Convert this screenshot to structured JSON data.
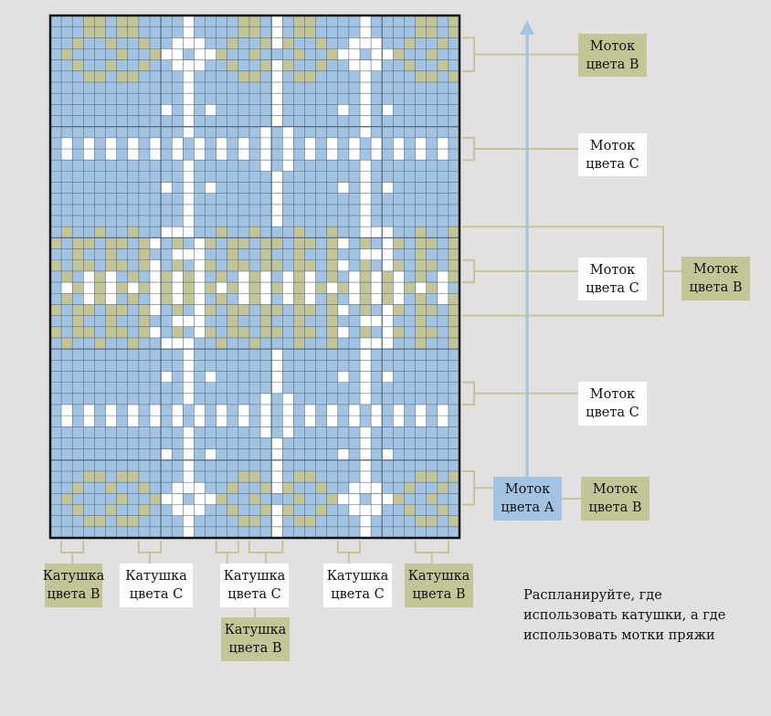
{
  "colors": {
    "background": "#e2e0e1",
    "color_a": "#a3c3e3",
    "color_b": "#c3c596",
    "color_c": "#ffffff",
    "grid_line": "#5a6d84",
    "arrow": "#a3c3e3"
  },
  "chart": {
    "columns": 37,
    "rows": 47,
    "pattern_rows": [
      "AAABBABBAAAACAAAABBACABBAAAACAAAABBAB",
      "AAABBABBAAAACAAAABBACABBAAAACAAAABBAB",
      "AABAABAABAACCCAABAABCBAABAACCCAABAABA",
      "ABAAAABAABCCACCBAABAAABAABCCACCBAABAA",
      "AABAABAABAACCCAABAABCBAABAACCCAABAABA",
      "AAABBABBAAAACAAAABBACABBAAAACAAAABBAB",
      "AAAAAAAAAAAACAAAAAAACAAAAAAACAAAAAAAA",
      "AAAAAAAAAAAACAAAAAAACAAAAAAACAAAAAAAA",
      "AAAAAAAAAACACACAAAAACAAAAACACACAAAAAA",
      "AAAAAAAAAAAACAAAAAAACAAAAAAACAAAAAAAA",
      "AAAAAAAAAAAACAAAAAACACAAAAAACAAAAAAAA",
      "ACACACACACACACACACACACACACACACACACACA",
      "ACACACACACACACACACACACACACACACACACACA",
      "AAAAAAAAAAAACAAAAAACACAAAAAACAAAAAAAA",
      "AAAAAAAAAAAACAAAAAAACAAAAAAACAAAAAAAA",
      "AAAAAAAAAACACACAAAAACAAAAACACACAAAAAA",
      "AAAAAAAAAAAACAAAAAAACAAAAAAACAAAAAAAA",
      "AAAAAAAAAAAACAAAAAAACAAAAAAACAAAAAAAA",
      "AAAAAAAAAAAACAAAAAAACAAAAAAACAAAAAAAA",
      "ABAABAABAACCCAABAABAAABAABAACCCAABAAB",
      "BABBABBABCABACBABBABBABBABCABACBABBAB",
      "AABAABAABAACCCAABAABAABAABAACCCAABAAB",
      "BABBABBABCABACBABBABBABBABCABACBABBAB",
      "ABACBCABACBCBCABACBCACBCABACBCBCABACB",
      "ACBCBCBCBCBCBCBCBCBCBCBCBCBCBCBCBCBCA",
      "ABACBCABACBCBCABACBCACBCABACBCBCABACB",
      "BABBABBABCABACBABBABBABBABCABACBABBAB",
      "AABAABAABAACCCAABAABAABAABAACCCAABAAB",
      "BABBABBABCABACBABBABBABBABCABACBABBAB",
      "ABAABAABAACCCAABAABAAABAABAACCCAABAAB",
      "AAAAAAAAAAAACAAAAAAACAAAAAAACAAAAAAAA",
      "AAAAAAAAAAAACAAAAAAACAAAAAAACAAAAAAAA",
      "AAAAAAAAAACACACAAAAACAAAAACACACAAAAAA",
      "AAAAAAAAAAAACAAAAAAACAAAAAAACAAAAAAAA",
      "AAAAAAAAAAAACAAAAAACACAAAAAACAAAAAAAA",
      "ACACACACACACACACACACACACACACACACACACA",
      "ACACACACACACACACACACACACACACACACACACA",
      "AAAAAAAAAAAACAAAAAACACAAAAAACAAAAAAAA",
      "AAAAAAAAAAAACAAAAAAACAAAAAAACAAAAAAAA",
      "AAAAAAAAAACACACAAAAACAAAAACACACAAAAAA",
      "AAAAAAAAAAAACAAAAAAACAAAAAAACAAAAAAAA",
      "AAABBABBAAAACAAAABBACABBAAAACAAAABBAB",
      "AABAABAABAACCCAABAABCBAABAACCCAABAABA",
      "ABAAAABAABCCACCBAABAAABAABCCACCBAABAA",
      "AABAABAABAACCCAABAABCBAABAACCCAABAABA",
      "AAABBABBAAAACAAAABBACABBAAAACAAAABBAB",
      "AAAAAAAAAAAACAAAAAAACAAAAAAACAAAAAAAA"
    ]
  },
  "right_labels": [
    {
      "id": "skein-b-top",
      "text": "Моток\nцвета В",
      "color": "green",
      "row_start": 2,
      "row_end": 5
    },
    {
      "id": "skein-c-1",
      "text": "Моток\nцвета С",
      "color": "white",
      "row_start": 11,
      "row_end": 12
    },
    {
      "id": "skein-c-2",
      "text": "Моток\nцвета С",
      "color": "white",
      "row_start": 23,
      "row_end": 25
    },
    {
      "id": "skein-b-middle",
      "text": "Моток\nцвета В",
      "color": "green",
      "row_start": 19,
      "row_end": 29
    },
    {
      "id": "skein-c-3",
      "text": "Моток\nцвета С",
      "color": "white",
      "row_start": 34,
      "row_end": 35
    },
    {
      "id": "skein-a",
      "text": "Моток\nцвета А",
      "color": "blue",
      "row_start": 42,
      "row_end": 44
    },
    {
      "id": "skein-b-bottom",
      "text": "Моток\nцвета В",
      "color": "green",
      "row_start": 42,
      "row_end": 44
    }
  ],
  "bottom_labels": [
    {
      "id": "bobbin-b-1",
      "text": "Катушка\nцвета В",
      "color": "green",
      "col_start": 1,
      "col_end": 2
    },
    {
      "id": "bobbin-c-1",
      "text": "Катушка\nцвета С",
      "color": "white",
      "col_start": 8,
      "col_end": 9
    },
    {
      "id": "bobbin-c-2",
      "text": "Катушка\nцвета С",
      "color": "white",
      "col_start": 17,
      "col_end": 21
    },
    {
      "id": "bobbin-b-2",
      "text": "Катушка\nцвета В",
      "color": "green",
      "col_start": 15,
      "col_end": 17
    },
    {
      "id": "bobbin-c-3",
      "text": "Катушка\nцвета С",
      "color": "white",
      "col_start": 27,
      "col_end": 28
    },
    {
      "id": "bobbin-b-3",
      "text": "Катушка\nцвета В",
      "color": "green",
      "col_start": 34,
      "col_end": 35
    }
  ],
  "note": "Распланируйте, где\nиспользовать катушки, а где\nиспользовать мотки пряжи"
}
